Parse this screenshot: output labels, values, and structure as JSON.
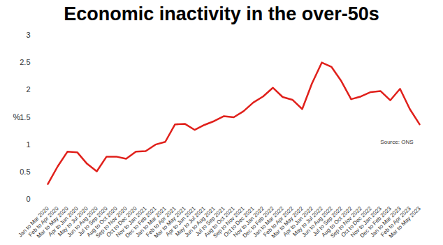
{
  "chart_data": {
    "type": "line",
    "title": "Economic inactivity in the over-50s",
    "y_label": "%",
    "categories": [
      "Jan to Mar 2020",
      "Feb to Apr 2020",
      "Mar to May 2020",
      "Apr to Jun 2020",
      "May to Jul 2020",
      "Jun to Aug 2020",
      "Jul to Sep 2020",
      "Aug to Oct 2020",
      "Sep to Nov 2020",
      "Oct to Dec 2020",
      "Nov to Jan 2021",
      "Dec to Feb 2021",
      "Jan to Mar 2021",
      "Feb to Apr 2021",
      "Mar to May 2021",
      "Apr to Jun 2021",
      "May to Jul 2021",
      "Jun to Aug 2021",
      "Jul to Sep 2021",
      "Aug to Oct 2021",
      "Sep to Nov 2021",
      "Oct to Dec 2021",
      "Nov to Jan 2022",
      "Dec to Feb 2022",
      "Jan to Mar 2022",
      "Feb to Apr 2022",
      "Mar to May 2022",
      "Apr to Jun 2022",
      "May to Jul 2022",
      "Jun to Aug 2022",
      "Jul to Sep 2022",
      "Aug to Oct 2022",
      "Sep to Nov 2022",
      "Oct to Dec 2022",
      "Nov to Jan 2023",
      "Dec to Feb 2023",
      "Jan to Mar 2023",
      "Feb to Apr 2023",
      "Mar to May 2023"
    ],
    "values": [
      0.28,
      0.6,
      0.87,
      0.86,
      0.65,
      0.51,
      0.78,
      0.78,
      0.74,
      0.87,
      0.88,
      1.0,
      1.05,
      1.37,
      1.38,
      1.27,
      1.36,
      1.43,
      1.52,
      1.5,
      1.61,
      1.77,
      1.88,
      2.04,
      1.87,
      1.82,
      1.65,
      2.12,
      2.5,
      2.42,
      2.16,
      1.83,
      1.88,
      1.96,
      1.98,
      1.81,
      2.02,
      1.65,
      1.37
    ],
    "color": "#e0201b",
    "ylim": [
      0,
      3
    ],
    "yticks": [
      0,
      0.5,
      1,
      1.5,
      2,
      2.5,
      3
    ],
    "grid": false,
    "annotations": [
      "Source: ONS"
    ]
  }
}
